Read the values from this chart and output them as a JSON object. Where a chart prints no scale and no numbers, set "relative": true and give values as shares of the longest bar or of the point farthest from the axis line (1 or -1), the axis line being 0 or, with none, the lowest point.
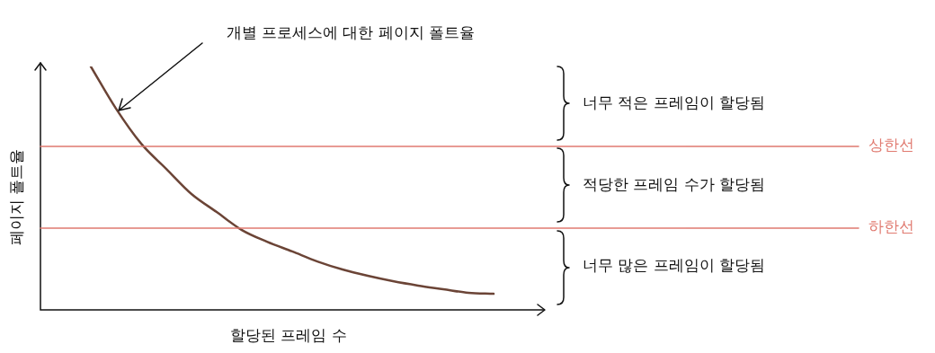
{
  "chart_data": {
    "type": "line",
    "relative": true,
    "xlabel": "할당된 프레임 수",
    "ylabel": "페이지 폴트율",
    "categories": [
      null,
      null,
      null,
      null,
      null,
      null,
      null,
      null,
      null,
      null,
      null,
      null,
      null,
      null,
      null,
      null,
      null,
      null,
      null,
      null,
      null
    ],
    "series": [
      {
        "color": "#6b4436",
        "values": [
          null,
          null,
          1,
          0.827,
          0.683,
          0.579,
          0.476,
          0.402,
          0.328,
          0.28,
          0.24,
          0.199,
          0.166,
          0.14,
          0.118,
          0.1,
          0.085,
          0.07,
          0.066,
          null,
          null
        ]
      }
    ],
    "ref_lines": [
      {
        "axis": "y",
        "value": 0.672,
        "label": "상한선",
        "color": "#e07a70"
      },
      {
        "axis": "y",
        "value": 0.336,
        "label": "하한선",
        "color": "#e07a70"
      }
    ],
    "annotations": [
      "개별 프로세스에 대한 페이지 폴트율",
      "너무 적은 프레임이 할당됨",
      "적당한 프레임 수가 할당됨",
      "너무 많은 프레임이 할당됨"
    ],
    "legend": false,
    "marker": "none",
    "line_style": "solid"
  }
}
